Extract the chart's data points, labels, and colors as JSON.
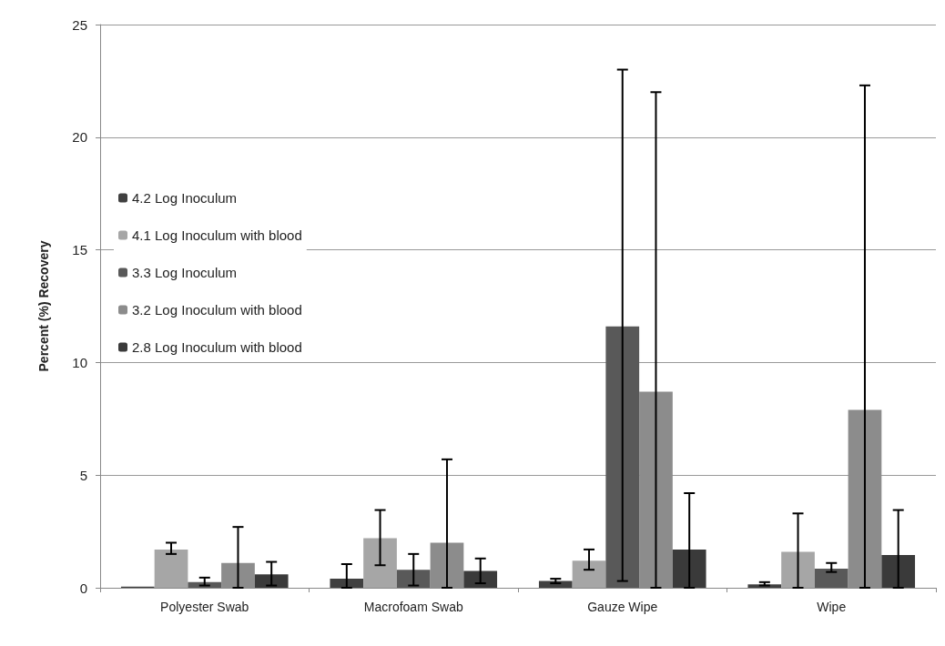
{
  "chart_data": {
    "type": "bar",
    "ylabel": "Percent (%) Recovery",
    "categories": [
      "Polyester Swab",
      "Macrofoam Swab",
      "Gauze Wipe",
      "Wipe"
    ],
    "series": [
      {
        "name": "4.2 Log Inoculum",
        "color": "#404040",
        "values": [
          0.05,
          0.4,
          0.3,
          0.15
        ],
        "errors": [
          null,
          [
            0,
            1.05
          ],
          [
            0.2,
            0.4
          ],
          [
            0.1,
            0.25
          ]
        ]
      },
      {
        "name": "4.1 Log Inoculum with blood",
        "color": "#a6a6a6",
        "values": [
          1.7,
          2.2,
          1.2,
          1.6
        ],
        "errors": [
          [
            1.5,
            2.0
          ],
          [
            1.0,
            3.45
          ],
          [
            0.8,
            1.7
          ],
          [
            0,
            3.3
          ]
        ]
      },
      {
        "name": "3.3 Log Inoculum",
        "color": "#595959",
        "values": [
          0.25,
          0.8,
          11.6,
          0.85
        ],
        "errors": [
          [
            0.1,
            0.45
          ],
          [
            0.1,
            1.5
          ],
          [
            0.3,
            23.0
          ],
          [
            0.7,
            1.1
          ]
        ]
      },
      {
        "name": "3.2 Log Inoculum with blood",
        "color": "#8c8c8c",
        "values": [
          1.1,
          2.0,
          8.7,
          7.9
        ],
        "errors": [
          [
            0,
            2.7
          ],
          [
            0,
            5.7
          ],
          [
            0,
            22.0
          ],
          [
            0,
            22.3
          ]
        ]
      },
      {
        "name": "2.8 Log Inoculum with blood",
        "color": "#3a3a3a",
        "values": [
          0.6,
          0.75,
          1.7,
          1.45
        ],
        "errors": [
          [
            0.1,
            1.15
          ],
          [
            0.2,
            1.3
          ],
          [
            0,
            4.2
          ],
          [
            0,
            3.45
          ]
        ]
      }
    ],
    "ylim": [
      0,
      25
    ],
    "yticks": [
      0,
      5,
      10,
      15,
      20,
      25
    ],
    "grid": "y",
    "legend": "left"
  }
}
